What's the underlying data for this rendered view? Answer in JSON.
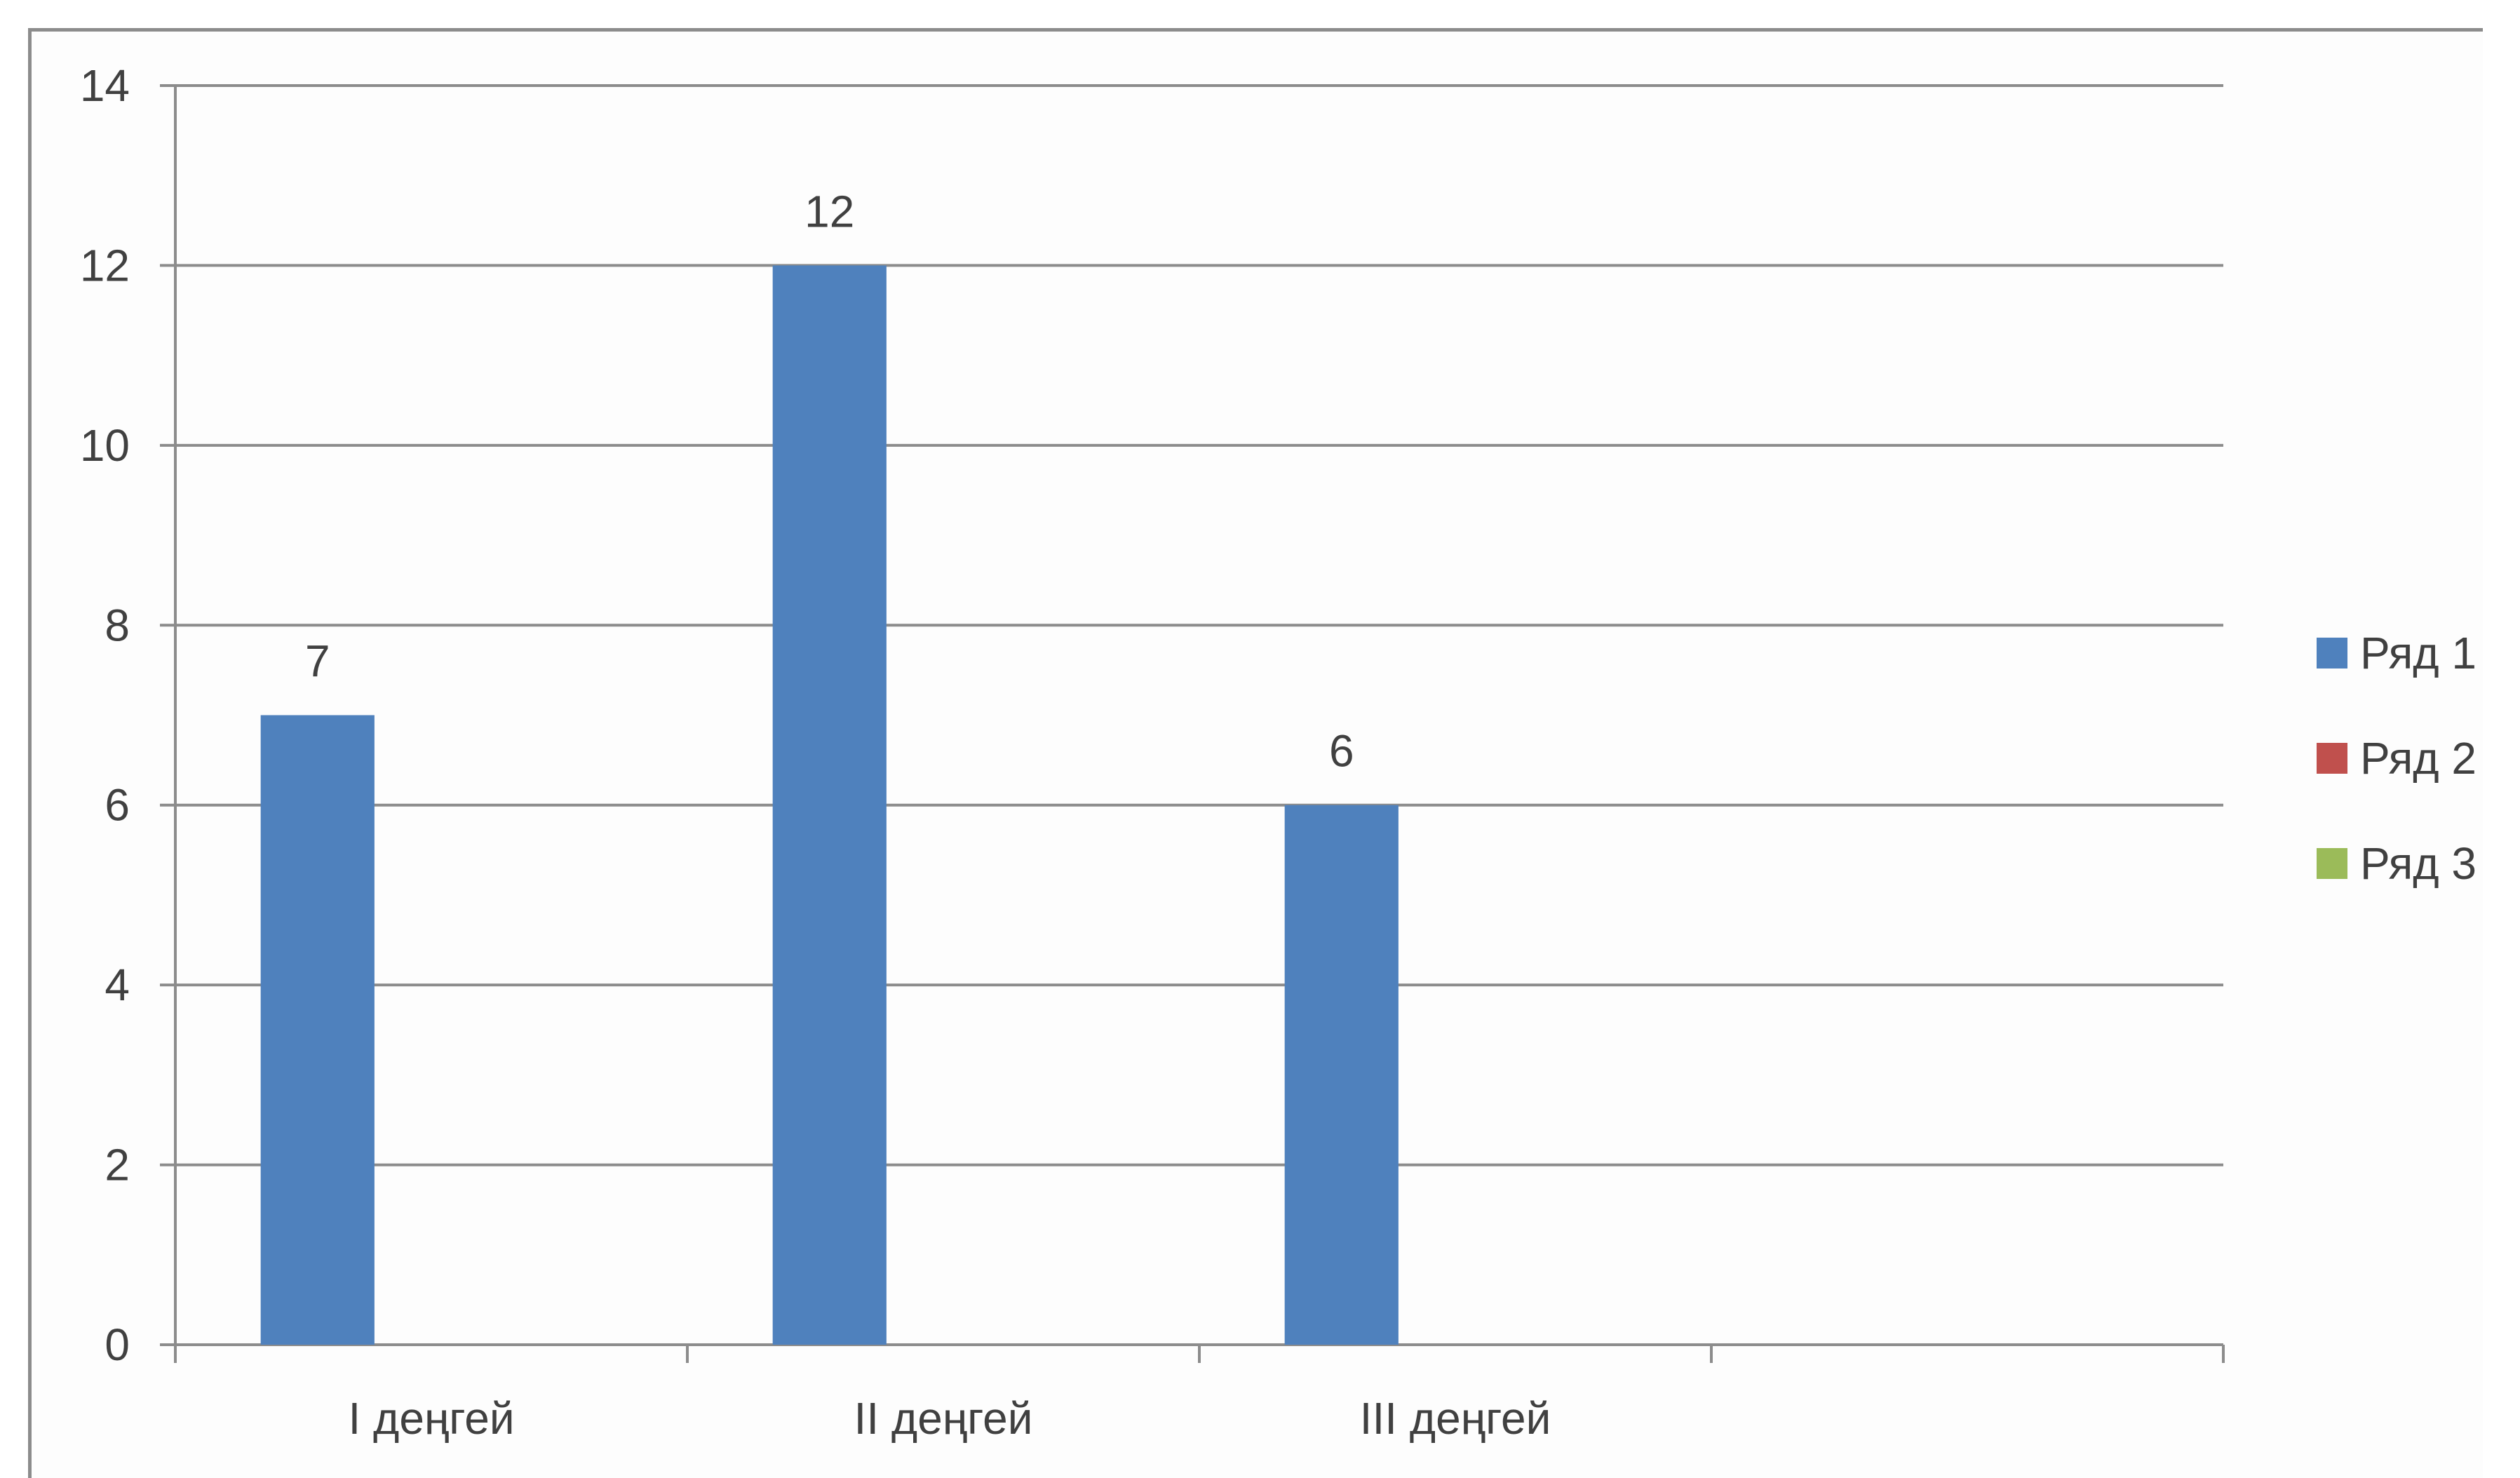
{
  "chart_data": {
    "type": "bar",
    "title": "",
    "xlabel": "",
    "ylabel": "",
    "categories": [
      "I деңгей",
      "II деңгей",
      "III деңгей",
      ""
    ],
    "series": [
      {
        "name": "Ряд 1",
        "color": "#4f81bd",
        "values": [
          7,
          12,
          6,
          null
        ]
      },
      {
        "name": "Ряд 2",
        "color": "#c0504d",
        "values": [
          null,
          null,
          null,
          null
        ]
      },
      {
        "name": "Ряд 3",
        "color": "#9bbb59",
        "values": [
          null,
          null,
          null,
          null
        ]
      }
    ],
    "ylim": [
      0,
      14
    ],
    "yticks": [
      0,
      2,
      4,
      6,
      8,
      10,
      12,
      14
    ],
    "grid": true,
    "legend_position": "right",
    "data_labels": true
  }
}
